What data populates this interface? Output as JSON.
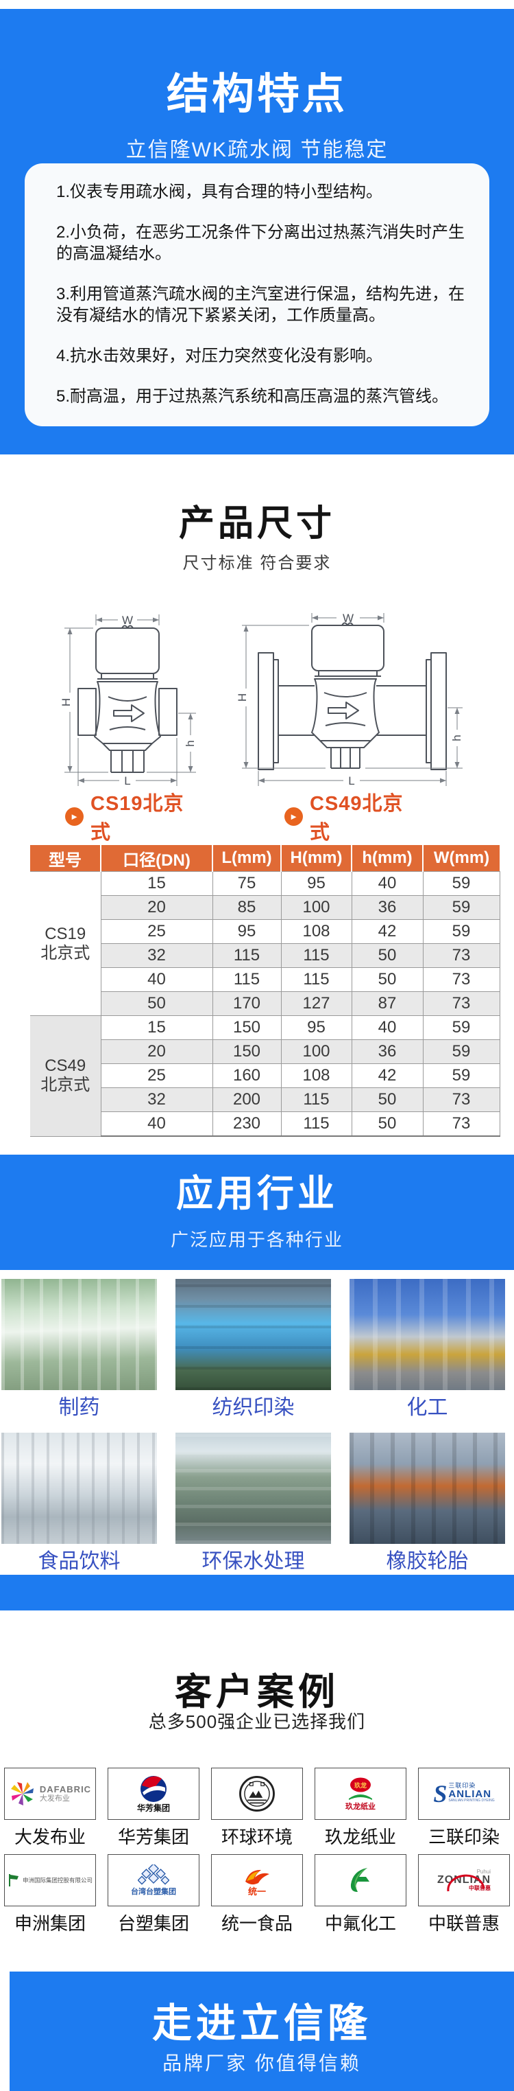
{
  "hero": {
    "title": "结构特点",
    "subtitle": "立信隆WK疏水阀 节能稳定",
    "features": [
      "1.仪表专用疏水阀，具有合理的特小型结构。",
      "2.小负荷，在恶劣工况条件下分离出过热蒸汽消失时产生的高温凝结水。",
      "3.利用管道蒸汽疏水阀的主汽室进行保温，结构先进，在没有凝结水的情况下紧紧关闭，工作质量高。",
      "4.抗水击效果好，对压力突然变化没有影响。",
      "5.耐高温，用于过热蒸汽系统和高压高温的蒸汽管线。"
    ]
  },
  "dimensions": {
    "title": "产品尺寸",
    "subtitle": "尺寸标准 符合要求",
    "dim_labels": {
      "w": "W",
      "h_big": "H",
      "h_small": "h",
      "l": "L"
    },
    "diagram_labels": [
      "CS19北京式",
      "CS49北京式"
    ],
    "play_glyph": "►",
    "table": {
      "headers": [
        "型号",
        "口径(DN)",
        "L(mm)",
        "H(mm)",
        "h(mm)",
        "W(mm)"
      ],
      "groups": [
        {
          "model_line1": "CS19",
          "model_line2": "北京式",
          "rows": [
            [
              "15",
              "75",
              "95",
              "40",
              "59"
            ],
            [
              "20",
              "85",
              "100",
              "36",
              "59"
            ],
            [
              "25",
              "95",
              "108",
              "42",
              "59"
            ],
            [
              "32",
              "115",
              "115",
              "50",
              "73"
            ],
            [
              "40",
              "115",
              "115",
              "50",
              "73"
            ],
            [
              "50",
              "170",
              "127",
              "87",
              "73"
            ]
          ]
        },
        {
          "model_line1": "CS49",
          "model_line2": "北京式",
          "rows": [
            [
              "15",
              "150",
              "95",
              "40",
              "59"
            ],
            [
              "20",
              "150",
              "100",
              "36",
              "59"
            ],
            [
              "25",
              "160",
              "108",
              "42",
              "59"
            ],
            [
              "32",
              "200",
              "115",
              "50",
              "73"
            ],
            [
              "40",
              "230",
              "115",
              "50",
              "73"
            ]
          ]
        }
      ]
    }
  },
  "applications": {
    "title": "应用行业",
    "subtitle": "广泛应用于各种行业",
    "items": [
      {
        "label": "制药"
      },
      {
        "label": "纺织印染"
      },
      {
        "label": "化工"
      },
      {
        "label": "食品饮料"
      },
      {
        "label": "环保水处理"
      },
      {
        "label": "橡胶轮胎"
      }
    ]
  },
  "customers": {
    "title": "客户案例",
    "subtitle": "总多500强企业已选择我们",
    "logos": [
      {
        "name": "大发布业",
        "kind": "dafabric",
        "text1": "DAFABRIC",
        "text2": "大发布业"
      },
      {
        "name": "华芳集团",
        "kind": "huafang",
        "text1": "华芳集团"
      },
      {
        "name": "环球环境",
        "kind": "huanqiu"
      },
      {
        "name": "玖龙纸业",
        "kind": "jiulong",
        "text1": "玖龙",
        "text2": "玖龙纸业"
      },
      {
        "name": "三联印染",
        "kind": "sanlian",
        "text1": "S",
        "text2": "ANLIAN",
        "text3": "三联印染",
        "text4": "SANLIAN PRINTING DYEING"
      },
      {
        "name": "申洲集团",
        "kind": "shenzhou",
        "text1": "申洲国际集团控股有限公司"
      },
      {
        "name": "台塑集团",
        "kind": "taisu",
        "text1": "台湾台塑集团"
      },
      {
        "name": "统一食品",
        "kind": "tongyi",
        "text1": "统一"
      },
      {
        "name": "中氟化工",
        "kind": "zhongfu"
      },
      {
        "name": "中联普惠",
        "kind": "zonlian",
        "text1": "ZONLIAN",
        "text2": "Puhui",
        "text3": "中联普惠"
      }
    ]
  },
  "footer": {
    "title": "走进立信隆",
    "subtitle": "品牌厂家 你值得信赖"
  },
  "colors": {
    "brand_blue": "#1d7bf0",
    "table_header_orange": "#e06a35",
    "accent_orange": "#e05123",
    "app_label_blue": "#3751c1"
  }
}
